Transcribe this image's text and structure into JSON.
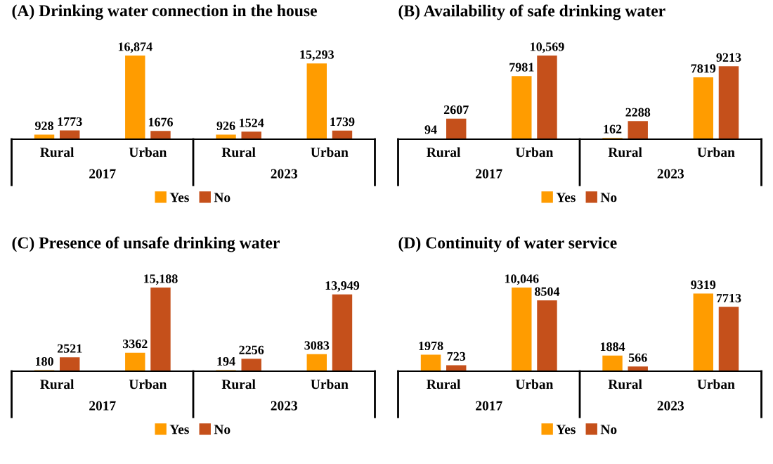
{
  "chart_data": [
    {
      "type": "bar",
      "title": "(A) Drinking water connection in the house",
      "categories": [
        "Rural",
        "Urban",
        "Rural",
        "Urban"
      ],
      "annotations": [
        "2017",
        "2023"
      ],
      "legend": "bottom",
      "series": [
        {
          "name": "Yes",
          "color": "#ff9c00",
          "values": [
            928,
            16874,
            926,
            15293
          ],
          "value_labels": [
            "928",
            "16,874",
            "926",
            "15,293"
          ]
        },
        {
          "name": "No",
          "color": "#c5501b",
          "values": [
            1773,
            1676,
            1524,
            1739
          ],
          "value_labels": [
            "1773",
            "1676",
            "1524",
            "1739"
          ]
        }
      ]
    },
    {
      "type": "bar",
      "title": "(B) Availability of safe drinking water",
      "categories": [
        "Rural",
        "Urban",
        "Rural",
        "Urban"
      ],
      "annotations": [
        "2017",
        "2023"
      ],
      "legend": "bottom",
      "series": [
        {
          "name": "Yes",
          "color": "#ff9c00",
          "values": [
            94,
            7981,
            162,
            7819
          ],
          "value_labels": [
            "94",
            "7981",
            "162",
            "7819"
          ]
        },
        {
          "name": "No",
          "color": "#c5501b",
          "values": [
            2607,
            10569,
            2288,
            9213
          ],
          "value_labels": [
            "2607",
            "10,569",
            "2288",
            "9213"
          ]
        }
      ]
    },
    {
      "type": "bar",
      "title": "(C) Presence of unsafe drinking water",
      "categories": [
        "Rural",
        "Urban",
        "Rural",
        "Urban"
      ],
      "annotations": [
        "2017",
        "2023"
      ],
      "legend": "bottom",
      "series": [
        {
          "name": "Yes",
          "color": "#ff9c00",
          "values": [
            180,
            3362,
            194,
            3083
          ],
          "value_labels": [
            "180",
            "3362",
            "194",
            "3083"
          ]
        },
        {
          "name": "No",
          "color": "#c5501b",
          "values": [
            2521,
            15188,
            2256,
            13949
          ],
          "value_labels": [
            "2521",
            "15,188",
            "2256",
            "13,949"
          ]
        }
      ]
    },
    {
      "type": "bar",
      "title": "(D) Continuity of water service",
      "categories": [
        "Rural",
        "Urban",
        "Rural",
        "Urban"
      ],
      "annotations": [
        "2017",
        "2023"
      ],
      "legend": "bottom",
      "series": [
        {
          "name": "Yes",
          "color": "#ff9c00",
          "values": [
            1978,
            10046,
            1884,
            9319
          ],
          "value_labels": [
            "1978",
            "10,046",
            "1884",
            "9319"
          ]
        },
        {
          "name": "No",
          "color": "#c5501b",
          "values": [
            723,
            8504,
            566,
            7713
          ],
          "value_labels": [
            "723",
            "8504",
            "566",
            "7713"
          ]
        }
      ]
    }
  ]
}
